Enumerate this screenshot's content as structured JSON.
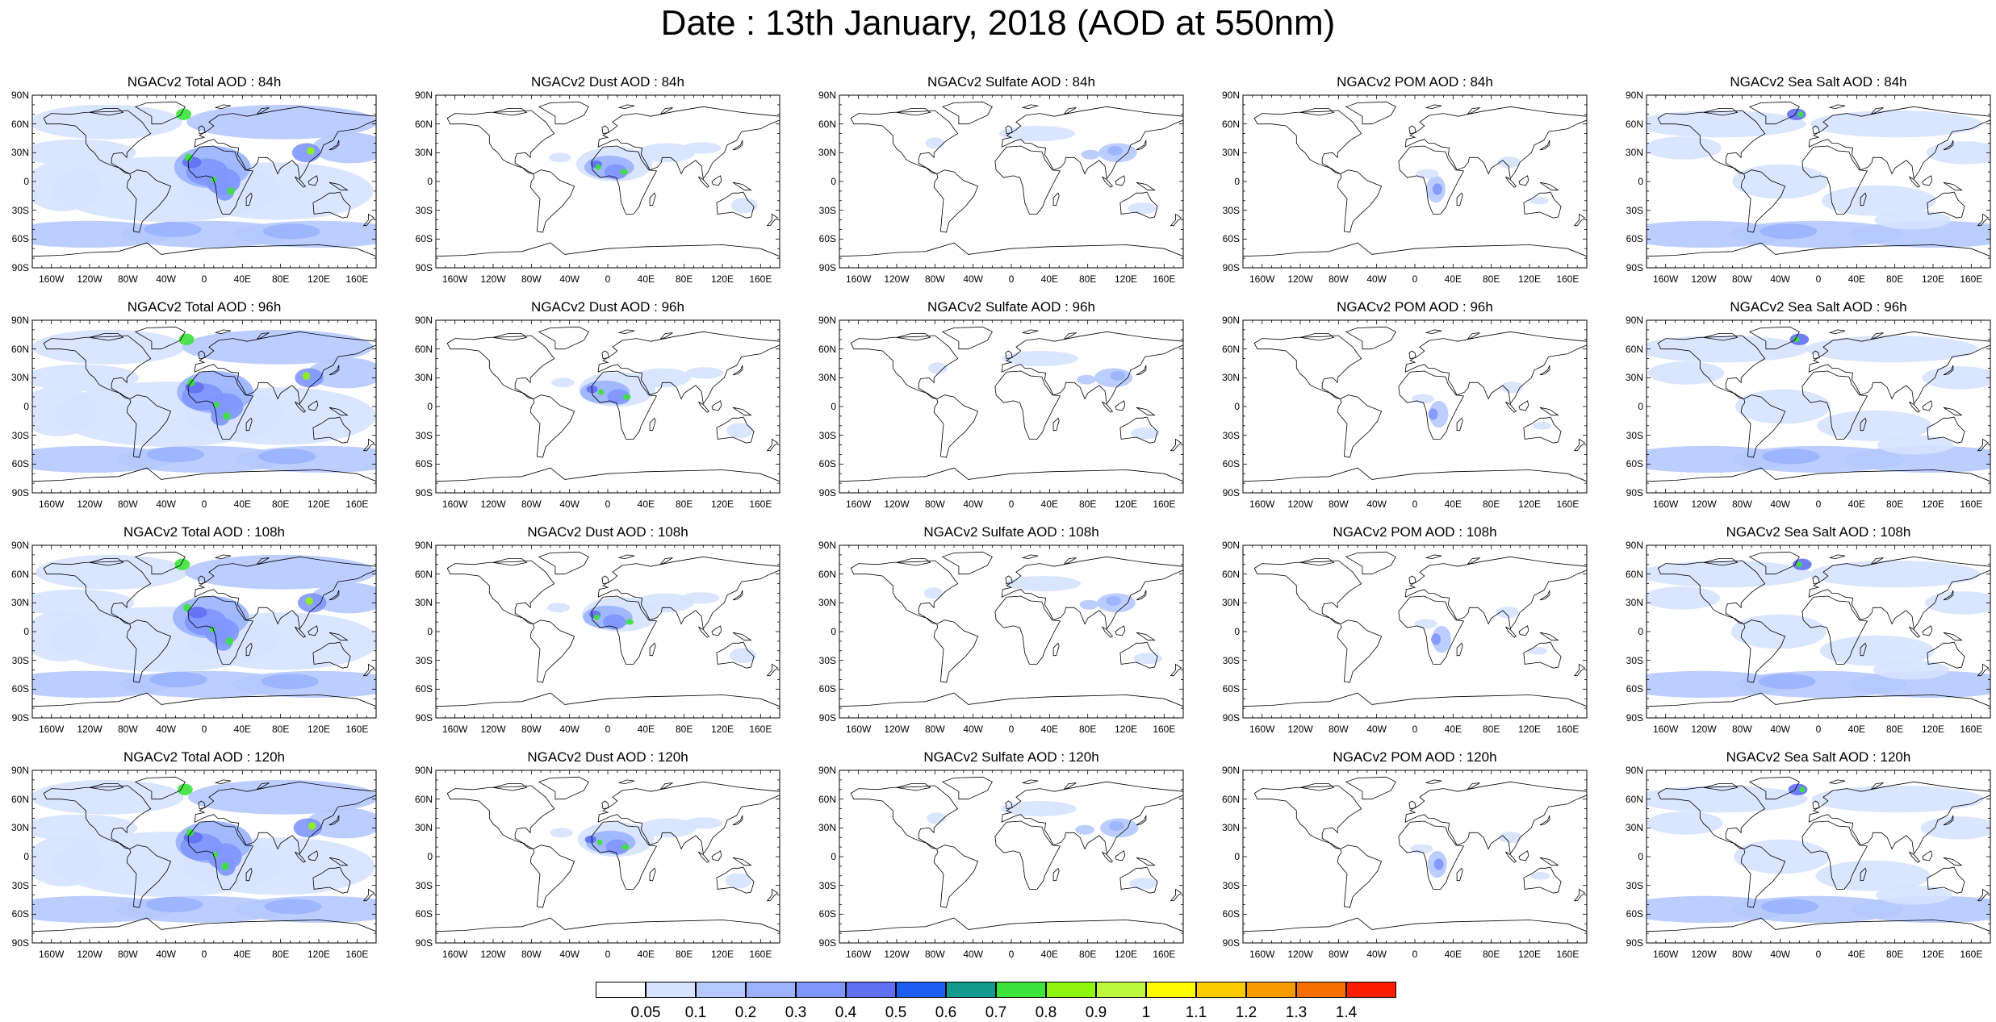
{
  "title": "Date : 13th January, 2018 (AOD at 550nm)",
  "rows": [
    {
      "panels": [
        {
          "title": "NGACv2 Total AOD : 84h",
          "species": "total"
        },
        {
          "title": "NGACv2 Dust AOD : 84h",
          "species": "dust"
        },
        {
          "title": "NGACv2 Sulfate AOD : 84h",
          "species": "sulfate"
        },
        {
          "title": "NGACv2 POM AOD : 84h",
          "species": "pom"
        },
        {
          "title": "NGACv2 Sea Salt AOD : 84h",
          "species": "seasalt"
        }
      ]
    },
    {
      "panels": [
        {
          "title": "NGACv2 Total AOD : 96h",
          "species": "total"
        },
        {
          "title": "NGACv2 Dust AOD : 96h",
          "species": "dust"
        },
        {
          "title": "NGACv2 Sulfate AOD : 96h",
          "species": "sulfate"
        },
        {
          "title": "NGACv2 POM AOD : 96h",
          "species": "pom"
        },
        {
          "title": "NGACv2 Sea Salt AOD : 96h",
          "species": "seasalt"
        }
      ]
    },
    {
      "panels": [
        {
          "title": "NGACv2 Total AOD : 108h",
          "species": "total"
        },
        {
          "title": "NGACv2 Dust AOD : 108h",
          "species": "dust"
        },
        {
          "title": "NGACv2 Sulfate AOD : 108h",
          "species": "sulfate"
        },
        {
          "title": "NGACv2 POM AOD : 108h",
          "species": "pom"
        },
        {
          "title": "NGACv2 Sea Salt AOD : 108h",
          "species": "seasalt"
        }
      ]
    },
    {
      "panels": [
        {
          "title": "NGACv2 Total AOD : 120h",
          "species": "total"
        },
        {
          "title": "NGACv2 Dust AOD : 120h",
          "species": "dust"
        },
        {
          "title": "NGACv2 Sulfate AOD : 120h",
          "species": "sulfate"
        },
        {
          "title": "NGACv2 POM AOD : 120h",
          "species": "pom"
        },
        {
          "title": "NGACv2 Sea Salt  AOD : 120h",
          "species": "seasalt"
        }
      ]
    }
  ],
  "lat_labels": [
    "90N",
    "60N",
    "30N",
    "0",
    "30S",
    "60S",
    "90S"
  ],
  "lon_labels": [
    "160W",
    "120W",
    "80W",
    "40W",
    "0",
    "40E",
    "80E",
    "120E",
    "160E"
  ],
  "colorbar": {
    "labels": [
      "0.05",
      "0.1",
      "0.2",
      "0.3",
      "0.4",
      "0.5",
      "0.6",
      "0.7",
      "0.8",
      "0.9",
      "1",
      "1.1",
      "1.2",
      "1.3",
      "1.4"
    ],
    "colors": [
      "#ffffff",
      "#d6e2ff",
      "#b5c9ff",
      "#9ab2ff",
      "#7f96ff",
      "#6070f2",
      "#1d5ef0",
      "#129a8f",
      "#3be33b",
      "#8ef50f",
      "#bef83d",
      "#fffc00",
      "#fbcb00",
      "#f69b00",
      "#f76f00",
      "#fa1e00"
    ]
  },
  "style": {
    "map_outline_color": "#000000",
    "ocean_color": "#ffffff"
  }
}
